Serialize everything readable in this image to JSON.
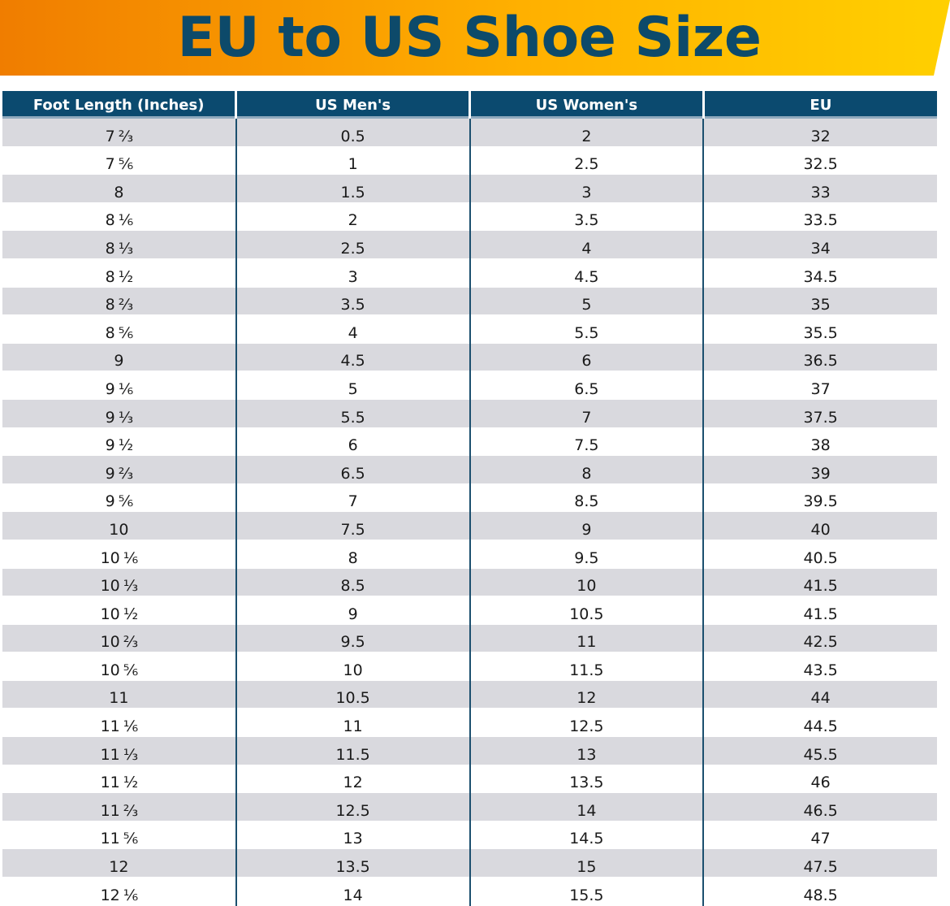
{
  "title": "EU to US Shoe Size",
  "colors": {
    "banner_start": "#f07d00",
    "banner_end": "#ffd000",
    "title_text": "#0d4a6a",
    "header_bg": "#0b4a6f",
    "stripe": "#d9d9de"
  },
  "table": {
    "headers": [
      "Foot Length (Inches)",
      "US Men's",
      "US Women's",
      "EU"
    ],
    "rows": [
      {
        "whole": "7",
        "frac": "⅔",
        "men": "0.5",
        "women": "2",
        "eu": "32"
      },
      {
        "whole": "7",
        "frac": "⅚",
        "men": "1",
        "women": "2.5",
        "eu": "32.5"
      },
      {
        "whole": "8",
        "frac": "",
        "men": "1.5",
        "women": "3",
        "eu": "33"
      },
      {
        "whole": "8",
        "frac": "⅙",
        "men": "2",
        "women": "3.5",
        "eu": "33.5"
      },
      {
        "whole": "8",
        "frac": "⅓",
        "men": "2.5",
        "women": "4",
        "eu": "34"
      },
      {
        "whole": "8",
        "frac": "½",
        "men": "3",
        "women": "4.5",
        "eu": "34.5"
      },
      {
        "whole": "8",
        "frac": "⅔",
        "men": "3.5",
        "women": "5",
        "eu": "35"
      },
      {
        "whole": "8",
        "frac": "⅚",
        "men": "4",
        "women": "5.5",
        "eu": "35.5"
      },
      {
        "whole": "9",
        "frac": "",
        "men": "4.5",
        "women": "6",
        "eu": "36.5"
      },
      {
        "whole": "9",
        "frac": "⅙",
        "men": "5",
        "women": "6.5",
        "eu": "37"
      },
      {
        "whole": "9",
        "frac": "⅓",
        "men": "5.5",
        "women": "7",
        "eu": "37.5"
      },
      {
        "whole": "9",
        "frac": "½",
        "men": "6",
        "women": "7.5",
        "eu": "38"
      },
      {
        "whole": "9",
        "frac": "⅔",
        "men": "6.5",
        "women": "8",
        "eu": "39"
      },
      {
        "whole": "9",
        "frac": "⅚",
        "men": "7",
        "women": "8.5",
        "eu": "39.5"
      },
      {
        "whole": "10",
        "frac": "",
        "men": "7.5",
        "women": "9",
        "eu": "40"
      },
      {
        "whole": "10",
        "frac": "⅙",
        "men": "8",
        "women": "9.5",
        "eu": "40.5"
      },
      {
        "whole": "10",
        "frac": "⅓",
        "men": "8.5",
        "women": "10",
        "eu": "41.5"
      },
      {
        "whole": "10",
        "frac": "½",
        "men": "9",
        "women": "10.5",
        "eu": "41.5"
      },
      {
        "whole": "10",
        "frac": "⅔",
        "men": "9.5",
        "women": "11",
        "eu": "42.5"
      },
      {
        "whole": "10",
        "frac": "⅚",
        "men": "10",
        "women": "11.5",
        "eu": "43.5"
      },
      {
        "whole": "11",
        "frac": "",
        "men": "10.5",
        "women": "12",
        "eu": "44"
      },
      {
        "whole": "11",
        "frac": "⅙",
        "men": "11",
        "women": "12.5",
        "eu": "44.5"
      },
      {
        "whole": "11",
        "frac": "⅓",
        "men": "11.5",
        "women": "13",
        "eu": "45.5"
      },
      {
        "whole": "11",
        "frac": "½",
        "men": "12",
        "women": "13.5",
        "eu": "46"
      },
      {
        "whole": "11",
        "frac": "⅔",
        "men": "12.5",
        "women": "14",
        "eu": "46.5"
      },
      {
        "whole": "11",
        "frac": "⅚",
        "men": "13",
        "women": "14.5",
        "eu": "47"
      },
      {
        "whole": "12",
        "frac": "",
        "men": "13.5",
        "women": "15",
        "eu": "47.5"
      },
      {
        "whole": "12",
        "frac": "⅙",
        "men": "14",
        "women": "15.5",
        "eu": "48.5"
      }
    ]
  }
}
